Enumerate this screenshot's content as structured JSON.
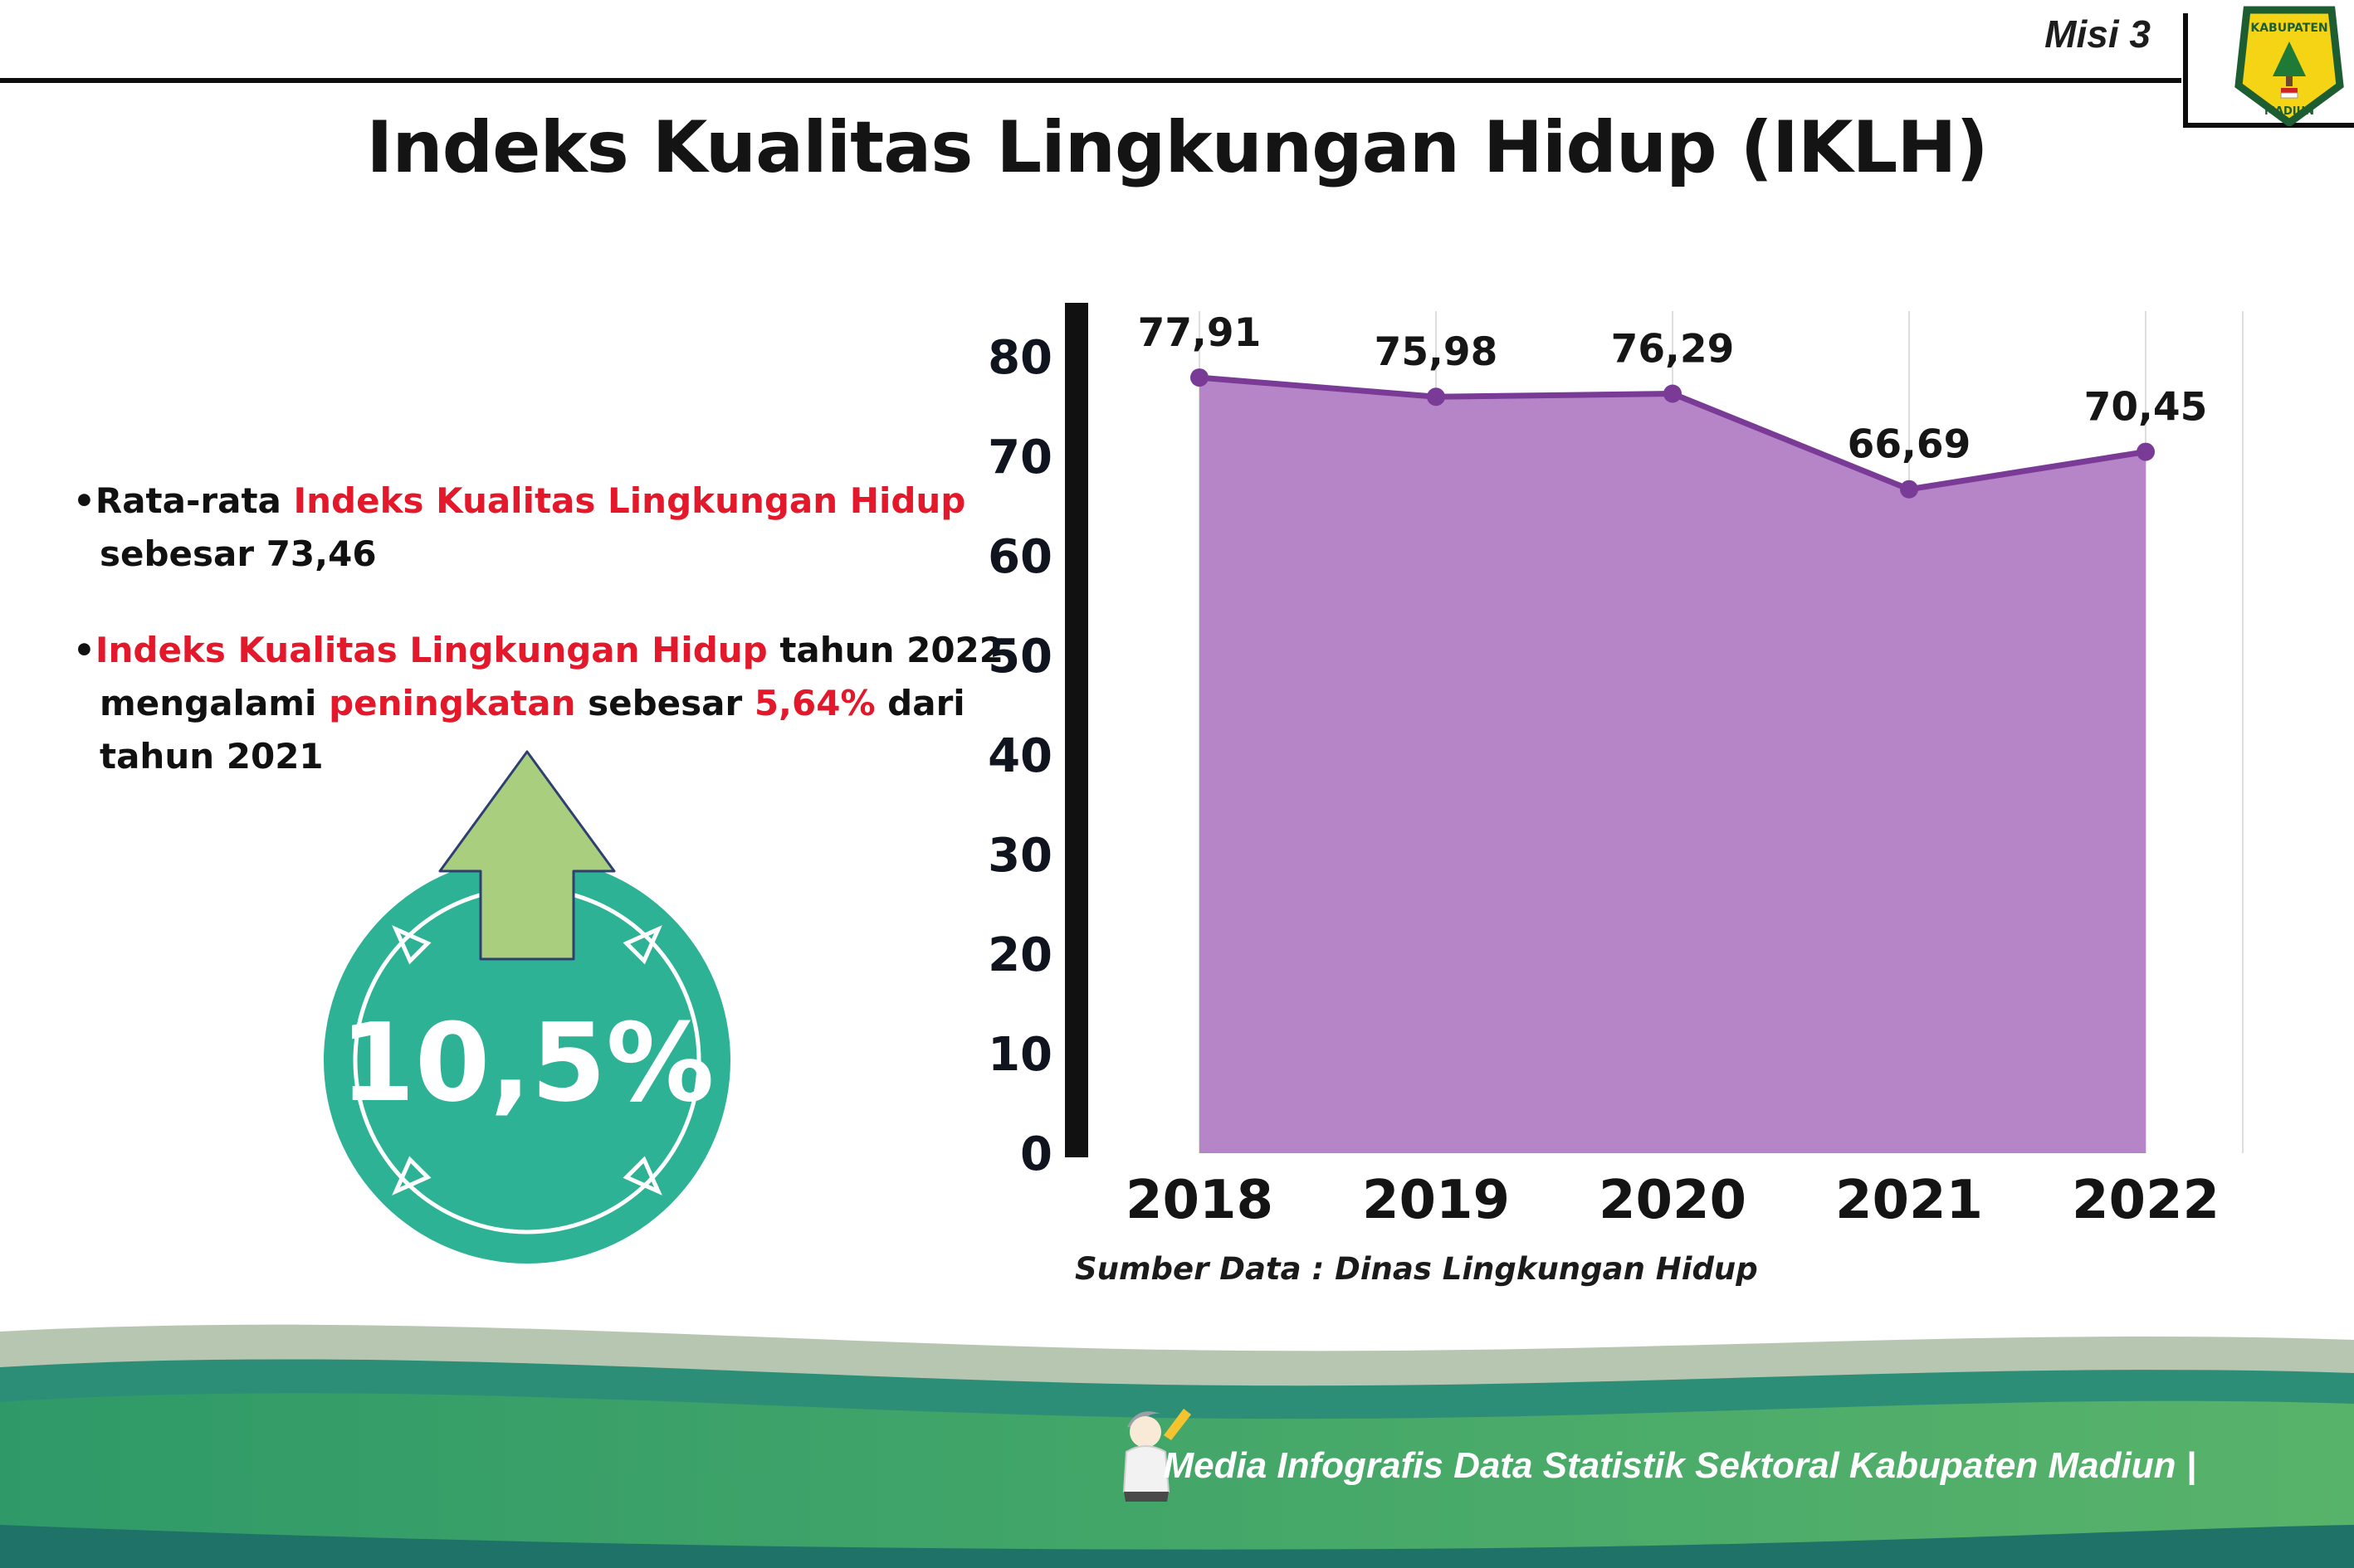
{
  "header": {
    "misi_label": "Misi 3",
    "title": "Indeks Kualitas Lingkungan Hidup (IKLH)",
    "logo_top": "KABUPATEN",
    "logo_bottom": "MADIUN"
  },
  "bullets": {
    "bullet_char": "•",
    "b1_seg1": "Rata-rata ",
    "b1_seg2": "Indeks Kualitas Lingkungan Hidup",
    "b1_line2": "sebesar 73,46",
    "b2_seg1": "Indeks Kualitas Lingkungan Hidup",
    "b2_seg2": " tahun 2022",
    "b2_seg3": "mengalami ",
    "b2_seg4": "peningkatan",
    "b2_seg5": " sebesar ",
    "b2_seg6": "5,64%",
    "b2_seg7": " dari",
    "b2_line3": "tahun 2021"
  },
  "badge": {
    "value": "10,5%",
    "circle_color": "#2db295",
    "arrow_color": "#a9cf7e"
  },
  "chart_data": {
    "type": "area",
    "title": "Indeks Kualitas Lingkungan Hidup (IKLH)",
    "categories": [
      "2018",
      "2019",
      "2020",
      "2021",
      "2022"
    ],
    "values": [
      77.91,
      75.98,
      76.29,
      66.69,
      70.45
    ],
    "value_labels": [
      "77,91",
      "75,98",
      "76,29",
      "66,69",
      "70,45"
    ],
    "xlabel": "",
    "ylabel": "",
    "ylim": [
      0,
      80
    ],
    "yticks": [
      0,
      10,
      20,
      30,
      40,
      50,
      60,
      70,
      80
    ],
    "grid": "vertical-light",
    "legend": "none",
    "fill_color": "#b685c8",
    "line_color": "#7a3b96",
    "source": "Sumber Data : Dinas Lingkungan Hidup"
  },
  "footer": {
    "caption": "Media Infografis Data Statistik Sektoral Kabupaten Madiun |"
  }
}
